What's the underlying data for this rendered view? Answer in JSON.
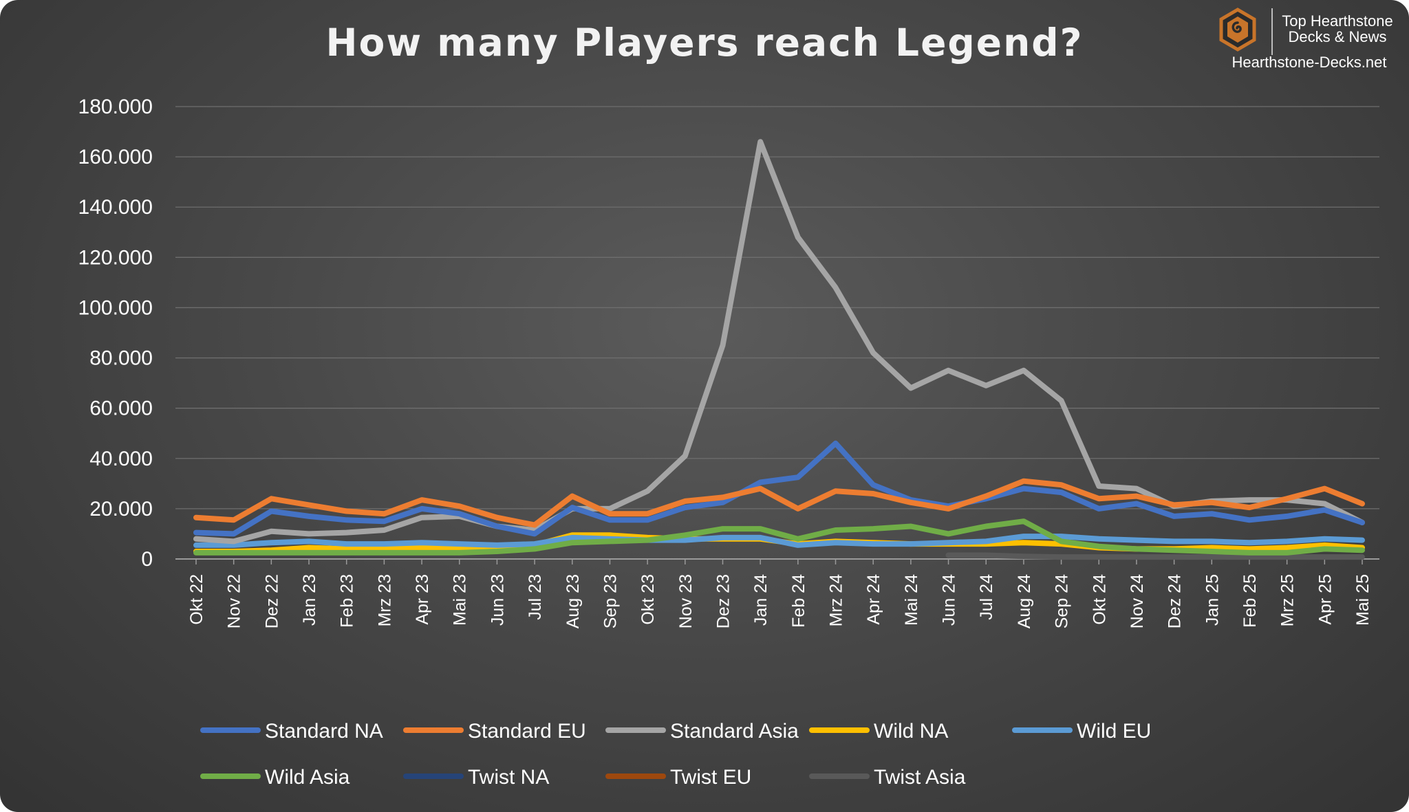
{
  "brand": {
    "line1": "Top Hearthstone",
    "line2": "Decks & News",
    "site": "Hearthstone-Decks.net",
    "logo_color": "#c8742a"
  },
  "chart_data": {
    "type": "line",
    "title": "How many Players reach Legend?",
    "xlabel": "",
    "ylabel": "",
    "ylim": [
      0,
      180000
    ],
    "yticks": [
      0,
      20000,
      40000,
      60000,
      80000,
      100000,
      120000,
      140000,
      160000,
      180000
    ],
    "ytick_labels": [
      "0",
      "20.000",
      "40.000",
      "60.000",
      "80.000",
      "100.000",
      "120.000",
      "140.000",
      "160.000",
      "180.000"
    ],
    "grid": true,
    "legend_position": "bottom",
    "categories": [
      "Okt 22",
      "Nov 22",
      "Dez 22",
      "Jan 23",
      "Feb 23",
      "Mrz 23",
      "Apr 23",
      "Mai 23",
      "Jun 23",
      "Jul 23",
      "Aug 23",
      "Sep 23",
      "Okt 23",
      "Nov 23",
      "Dez 23",
      "Jan 24",
      "Feb 24",
      "Mrz 24",
      "Apr 24",
      "Mai 24",
      "Jun 24",
      "Jul 24",
      "Aug 24",
      "Sep 24",
      "Okt 24",
      "Nov 24",
      "Dez 24",
      "Jan 25",
      "Feb 25",
      "Mrz 25",
      "Apr 25",
      "Mai 25"
    ],
    "series": [
      {
        "name": "Twist Asia",
        "color": "#595959",
        "values": [
          null,
          null,
          null,
          null,
          null,
          null,
          null,
          null,
          null,
          null,
          null,
          null,
          null,
          null,
          null,
          null,
          null,
          null,
          null,
          null,
          1500,
          1500,
          1000,
          800,
          800,
          800,
          800,
          800,
          800,
          800,
          800,
          800
        ]
      },
      {
        "name": "Twist EU",
        "color": "#9e480e",
        "values": [
          null,
          null,
          null,
          null,
          null,
          null,
          null,
          null,
          null,
          null,
          null,
          null,
          null,
          null,
          null,
          null,
          null,
          null,
          null,
          null,
          300,
          null,
          null,
          null,
          null,
          null,
          null,
          null,
          null,
          null,
          null,
          null
        ]
      },
      {
        "name": "Twist NA",
        "color": "#264478",
        "values": [
          null,
          null,
          null,
          null,
          null,
          null,
          null,
          null,
          null,
          null,
          null,
          null,
          null,
          null,
          null,
          null,
          null,
          null,
          null,
          null,
          null,
          null,
          null,
          null,
          null,
          null,
          null,
          null,
          null,
          null,
          null,
          null
        ]
      },
      {
        "name": "Wild NA",
        "color": "#ffc000",
        "values": [
          3000,
          3000,
          3500,
          4500,
          4000,
          4000,
          4500,
          4000,
          4000,
          5500,
          9500,
          9500,
          8500,
          8000,
          8000,
          8000,
          6000,
          7000,
          6500,
          6000,
          6000,
          6000,
          6500,
          6000,
          4500,
          4000,
          4000,
          4500,
          4000,
          4500,
          5500,
          4500
        ]
      },
      {
        "name": "Wild EU",
        "color": "#5b9bd5",
        "values": [
          5500,
          5500,
          6500,
          7000,
          6000,
          6000,
          6500,
          6000,
          5500,
          6000,
          8500,
          8000,
          7500,
          7500,
          8500,
          8500,
          5500,
          6500,
          6000,
          6000,
          6500,
          7000,
          9000,
          9000,
          8000,
          7500,
          7000,
          7000,
          6500,
          7000,
          8000,
          7500
        ]
      },
      {
        "name": "Wild Asia",
        "color": "#70ad47",
        "values": [
          2500,
          2500,
          2500,
          2500,
          2500,
          2500,
          2500,
          2500,
          3000,
          4000,
          6500,
          7000,
          7500,
          9500,
          12000,
          12000,
          8000,
          11500,
          12000,
          13000,
          10000,
          13000,
          15000,
          7000,
          5000,
          4000,
          3500,
          3000,
          2500,
          2500,
          4000,
          3500
        ]
      },
      {
        "name": "Standard Asia",
        "color": "#a5a5a5",
        "values": [
          8000,
          7000,
          11000,
          10000,
          10500,
          11500,
          16500,
          17000,
          13000,
          11500,
          20000,
          20000,
          27000,
          41000,
          85000,
          166000,
          128000,
          108000,
          82000,
          68000,
          75000,
          69000,
          75000,
          63000,
          29000,
          28000,
          21000,
          23000,
          23500,
          23500,
          22000,
          14500
        ]
      },
      {
        "name": "Standard NA",
        "color": "#4472c4",
        "values": [
          10500,
          10000,
          19000,
          17000,
          15500,
          15000,
          20000,
          18000,
          13000,
          10000,
          20500,
          15500,
          15500,
          20500,
          22500,
          30500,
          32500,
          46000,
          29500,
          23500,
          21000,
          24000,
          28000,
          26500,
          20000,
          22000,
          17000,
          18000,
          15500,
          17000,
          19500,
          14500
        ]
      },
      {
        "name": "Standard EU",
        "color": "#ed7d31",
        "values": [
          16500,
          15500,
          24000,
          21500,
          19000,
          18000,
          23500,
          21000,
          16500,
          13500,
          25000,
          18000,
          18000,
          23000,
          24500,
          28000,
          20000,
          27000,
          26000,
          22500,
          20000,
          25000,
          31000,
          29500,
          24000,
          25000,
          21500,
          22500,
          20500,
          24000,
          28000,
          22000
        ]
      }
    ],
    "legend": [
      {
        "name": "Standard NA",
        "color": "#4472c4"
      },
      {
        "name": "Standard EU",
        "color": "#ed7d31"
      },
      {
        "name": "Standard Asia",
        "color": "#a5a5a5"
      },
      {
        "name": "Wild NA",
        "color": "#ffc000"
      },
      {
        "name": "Wild EU",
        "color": "#5b9bd5"
      },
      {
        "name": "Wild Asia",
        "color": "#70ad47"
      },
      {
        "name": "Twist NA",
        "color": "#264478"
      },
      {
        "name": "Twist EU",
        "color": "#9e480e"
      },
      {
        "name": "Twist Asia",
        "color": "#595959"
      }
    ]
  }
}
